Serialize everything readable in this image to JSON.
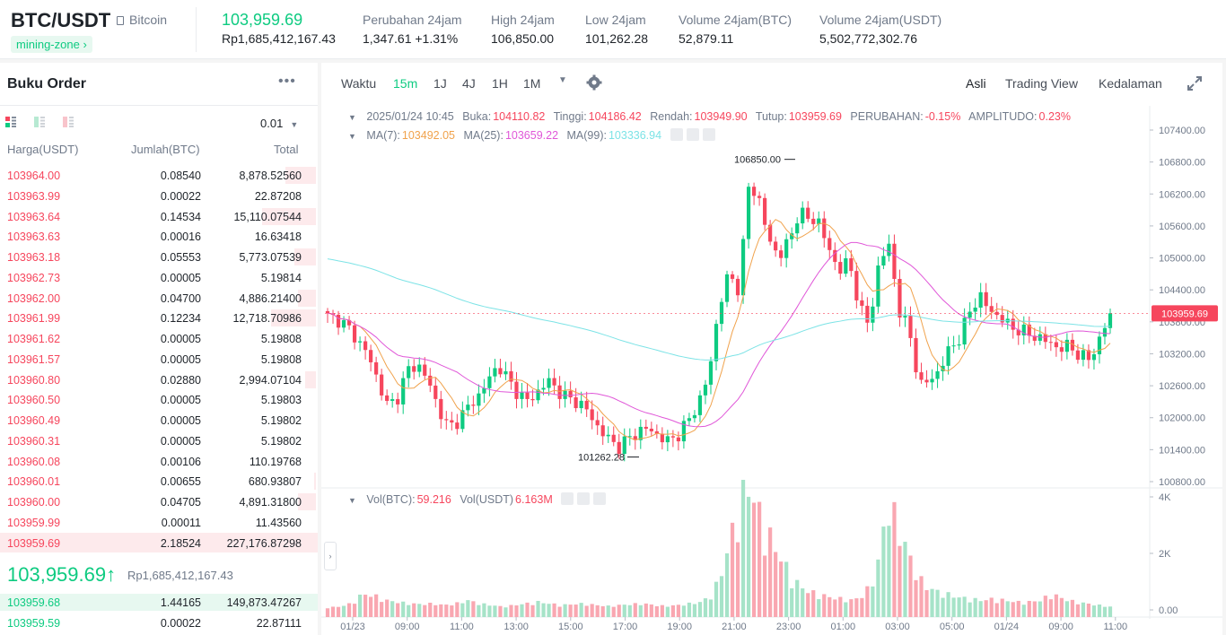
{
  "header": {
    "pair": "BTC/USDT",
    "coin_name": "Bitcoin",
    "zone_tag": "mining-zone",
    "last_price": "103,959.69",
    "last_price_idr": "Rp1,685,412,167.43",
    "stats": [
      {
        "label": "Perubahan 24jam",
        "value": "1,347.61 +1.31%",
        "color": "#0ecb81"
      },
      {
        "label": "High 24jam",
        "value": "106,850.00"
      },
      {
        "label": "Low 24jam",
        "value": "101,262.28"
      },
      {
        "label": "Volume 24jam(BTC)",
        "value": "52,879.11"
      },
      {
        "label": "Volume 24jam(USDT)",
        "value": "5,502,772,302.76"
      }
    ]
  },
  "orderbook": {
    "title": "Buku Order",
    "more_icon": "more-icon",
    "step": "0.01",
    "columns": [
      "Harga(USDT)",
      "Jumlah(BTC)",
      "Total"
    ],
    "asks": [
      {
        "price": "103964.00",
        "amount": "0.08540",
        "total": "8,878.52560",
        "depth": 0.28
      },
      {
        "price": "103963.99",
        "amount": "0.00022",
        "total": "22.87208",
        "depth": 0.0
      },
      {
        "price": "103963.64",
        "amount": "0.14534",
        "total": "15,110.07544",
        "depth": 0.5
      },
      {
        "price": "103963.63",
        "amount": "0.00016",
        "total": "16.63418",
        "depth": 0.0
      },
      {
        "price": "103963.18",
        "amount": "0.05553",
        "total": "5,773.07539",
        "depth": 0.2
      },
      {
        "price": "103962.73",
        "amount": "0.00005",
        "total": "5.19814",
        "depth": 0.0
      },
      {
        "price": "103962.00",
        "amount": "0.04700",
        "total": "4,886.21400",
        "depth": 0.17
      },
      {
        "price": "103961.99",
        "amount": "0.12234",
        "total": "12,718.70986",
        "depth": 0.42
      },
      {
        "price": "103961.62",
        "amount": "0.00005",
        "total": "5.19808",
        "depth": 0.0
      },
      {
        "price": "103961.57",
        "amount": "0.00005",
        "total": "5.19808",
        "depth": 0.0
      },
      {
        "price": "103960.80",
        "amount": "0.02880",
        "total": "2,994.07104",
        "depth": 0.1
      },
      {
        "price": "103960.50",
        "amount": "0.00005",
        "total": "5.19803",
        "depth": 0.0
      },
      {
        "price": "103960.49",
        "amount": "0.00005",
        "total": "5.19802",
        "depth": 0.0
      },
      {
        "price": "103960.31",
        "amount": "0.00005",
        "total": "5.19802",
        "depth": 0.0
      },
      {
        "price": "103960.08",
        "amount": "0.00106",
        "total": "110.19768",
        "depth": 0.0
      },
      {
        "price": "103960.01",
        "amount": "0.00655",
        "total": "680.93807",
        "depth": 0.02
      },
      {
        "price": "103960.00",
        "amount": "0.04705",
        "total": "4,891.31800",
        "depth": 0.17
      },
      {
        "price": "103959.99",
        "amount": "0.00011",
        "total": "11.43560",
        "depth": 0.0
      },
      {
        "price": "103959.69",
        "amount": "2.18524",
        "total": "227,176.87298",
        "depth": 1.0
      }
    ],
    "mid_price": "103,959.69",
    "mid_arrow": "↑",
    "mid_price_idr": "Rp1,685,412,167.43",
    "bids": [
      {
        "price": "103959.68",
        "amount": "1.44165",
        "total": "149,873.47267",
        "depth": 1.0
      },
      {
        "price": "103959.59",
        "amount": "0.00022",
        "total": "22.87111",
        "depth": 0.0
      }
    ]
  },
  "toolbar": {
    "time_label": "Waktu",
    "intervals": [
      "15m",
      "1J",
      "4J",
      "1H",
      "1M"
    ],
    "active_interval": "15m",
    "views": [
      "Asli",
      "Trading View",
      "Kedalaman"
    ],
    "active_view": "Asli"
  },
  "legend": {
    "datetime": "2025/01/24 10:45",
    "open_label": "Buka:",
    "open": "104110.82",
    "high_label": "Tinggi:",
    "high": "104186.42",
    "low_label": "Rendah:",
    "low": "103949.90",
    "close_label": "Tutup:",
    "close": "103959.69",
    "change_label": "PERUBAHAN:",
    "change": "-0.15%",
    "amp_label": "AMPLITUDO:",
    "amp": "0.23%",
    "ma7_label": "MA(7):",
    "ma7": "103492.05",
    "ma25_label": "MA(25):",
    "ma25": "103659.22",
    "ma99_label": "MA(99):",
    "ma99": "103336.94",
    "vol_btc_label": "Vol(BTC):",
    "vol_btc": "59.216",
    "vol_usdt_label": "Vol(USDT)",
    "vol_usdt": "6.163M"
  },
  "chart_data": {
    "type": "candlestick",
    "y_ticks": [
      "107400.00",
      "106800.00",
      "106200.00",
      "105600.00",
      "105000.00",
      "104400.00",
      "103800.00",
      "103200.00",
      "102600.00",
      "102000.00",
      "101400.00",
      "100800.00"
    ],
    "ylim": [
      100780,
      107700
    ],
    "x_ticks": [
      "01/23",
      "09:00",
      "11:00",
      "13:00",
      "15:00",
      "17:00",
      "19:00",
      "21:00",
      "23:00",
      "01:00",
      "03:00",
      "05:00",
      "01/24",
      "09:00",
      "11:00"
    ],
    "high_marker": "106850.00",
    "low_marker": "101262.28",
    "price_tag": "103959.69",
    "vol_ticks": [
      "4K",
      "2K",
      "0.00"
    ],
    "vol_max": 4000,
    "colors": {
      "up": "#0ecb81",
      "down": "#f6465d",
      "ma7": "#f0a24c",
      "ma25": "#e057d8",
      "ma99": "#7ce3e6"
    },
    "anchors": [
      103900,
      103850,
      103700,
      103450,
      103200,
      102700,
      102200,
      102400,
      102900,
      103000,
      102700,
      102200,
      101800,
      101950,
      102200,
      102400,
      102700,
      103000,
      102700,
      102450,
      102300,
      102500,
      102700,
      102500,
      102350,
      102300,
      102100,
      101800,
      101600,
      101450,
      101600,
      101750,
      101800,
      101650,
      101550,
      101700,
      101950,
      102300,
      102800,
      104100,
      104700,
      104400,
      106400,
      106100,
      105300,
      105050,
      105300,
      105900,
      105700,
      105700,
      105100,
      104800,
      104900,
      104100,
      103700,
      105000,
      105200,
      104000,
      103600,
      102600,
      102700,
      102900,
      103300,
      103500,
      104000,
      104300,
      104000,
      103900,
      103700,
      103650,
      103550,
      103500,
      103400,
      103300,
      103350,
      103150,
      103100,
      103500,
      103960
    ],
    "volume_anchors": [
      80,
      100,
      200,
      500,
      450,
      300,
      250,
      200,
      180,
      200,
      150,
      200,
      300,
      200,
      150,
      100,
      150,
      200,
      250,
      200,
      150,
      180,
      200,
      150,
      120,
      150,
      180,
      200,
      150,
      120,
      150,
      200,
      250,
      500,
      1500,
      3000,
      4000,
      3000,
      2200,
      1500,
      900,
      600,
      500,
      400,
      350,
      300,
      500,
      1200,
      3400,
      2500,
      1500,
      800,
      600,
      500,
      400,
      350,
      300,
      350,
      300,
      250,
      250,
      300,
      500,
      350,
      250,
      200,
      150,
      100
    ]
  }
}
